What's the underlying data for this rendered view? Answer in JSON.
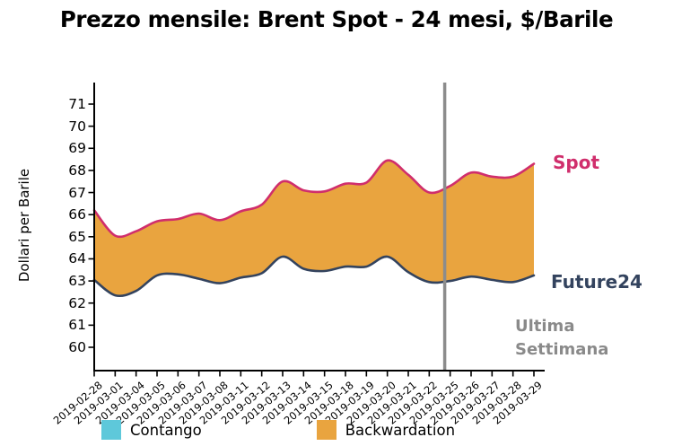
{
  "title": "Prezzo mensile: Brent Spot - 24 mesi, $/Barile",
  "y_axis": {
    "label": "Dollari per Barile"
  },
  "chart_data": {
    "type": "line",
    "subtype": "area-between-lines",
    "title": "Prezzo mensile: Brent Spot - 24 mesi, $/Barile",
    "ylabel": "Dollari per Barile",
    "x": [
      "2019-02-28",
      "2019-03-01",
      "2019-03-04",
      "2019-03-05",
      "2019-03-06",
      "2019-03-07",
      "2019-03-08",
      "2019-03-11",
      "2019-03-12",
      "2019-03-13",
      "2019-03-14",
      "2019-03-15",
      "2019-03-18",
      "2019-03-19",
      "2019-03-20",
      "2019-03-21",
      "2019-03-22",
      "2019-03-25",
      "2019-03-26",
      "2019-03-27",
      "2019-03-28",
      "2019-03-29"
    ],
    "series": [
      {
        "name": "Spot",
        "color": "#d02e6c",
        "values": [
          66.2,
          65.05,
          65.25,
          65.7,
          65.8,
          66.05,
          65.75,
          66.15,
          66.45,
          67.5,
          67.1,
          67.05,
          67.4,
          67.45,
          68.45,
          67.8,
          67.0,
          67.3,
          67.9,
          67.72,
          67.72,
          68.3
        ]
      },
      {
        "name": "Future24",
        "color": "#33435e",
        "values": [
          63.05,
          62.35,
          62.55,
          63.25,
          63.3,
          63.1,
          62.9,
          63.15,
          63.35,
          64.1,
          63.55,
          63.45,
          63.65,
          63.65,
          64.1,
          63.4,
          62.95,
          63.0,
          63.2,
          63.05,
          62.95,
          63.25
        ]
      }
    ],
    "fill_between": {
      "label": "Backwardation",
      "color": "#e9a43f"
    },
    "yticks": [
      60,
      61,
      62,
      63,
      64,
      65,
      66,
      67,
      68,
      69,
      70,
      71
    ],
    "ylim": [
      58.9,
      72.0
    ],
    "grid": false,
    "legend_position": "bottom",
    "marker_line": {
      "label": "Ultima Settimana",
      "position_index": 16.74,
      "color": "#8c8c8c"
    }
  },
  "annotations": {
    "spot": "Spot",
    "future24": "Future24",
    "marker_line1": "Ultima",
    "marker_line2": "Settimana"
  },
  "legend": [
    {
      "label": "Contango",
      "color": "#5ec8da"
    },
    {
      "label": "Backwardation",
      "color": "#e9a43f"
    }
  ],
  "colors": {
    "spot_line": "#d02e6c",
    "future24_line": "#33435e",
    "backwardation_fill": "#e9a43f",
    "contango_fill": "#5ec8da",
    "marker_line": "#8c8c8c",
    "axis": "#000000"
  }
}
